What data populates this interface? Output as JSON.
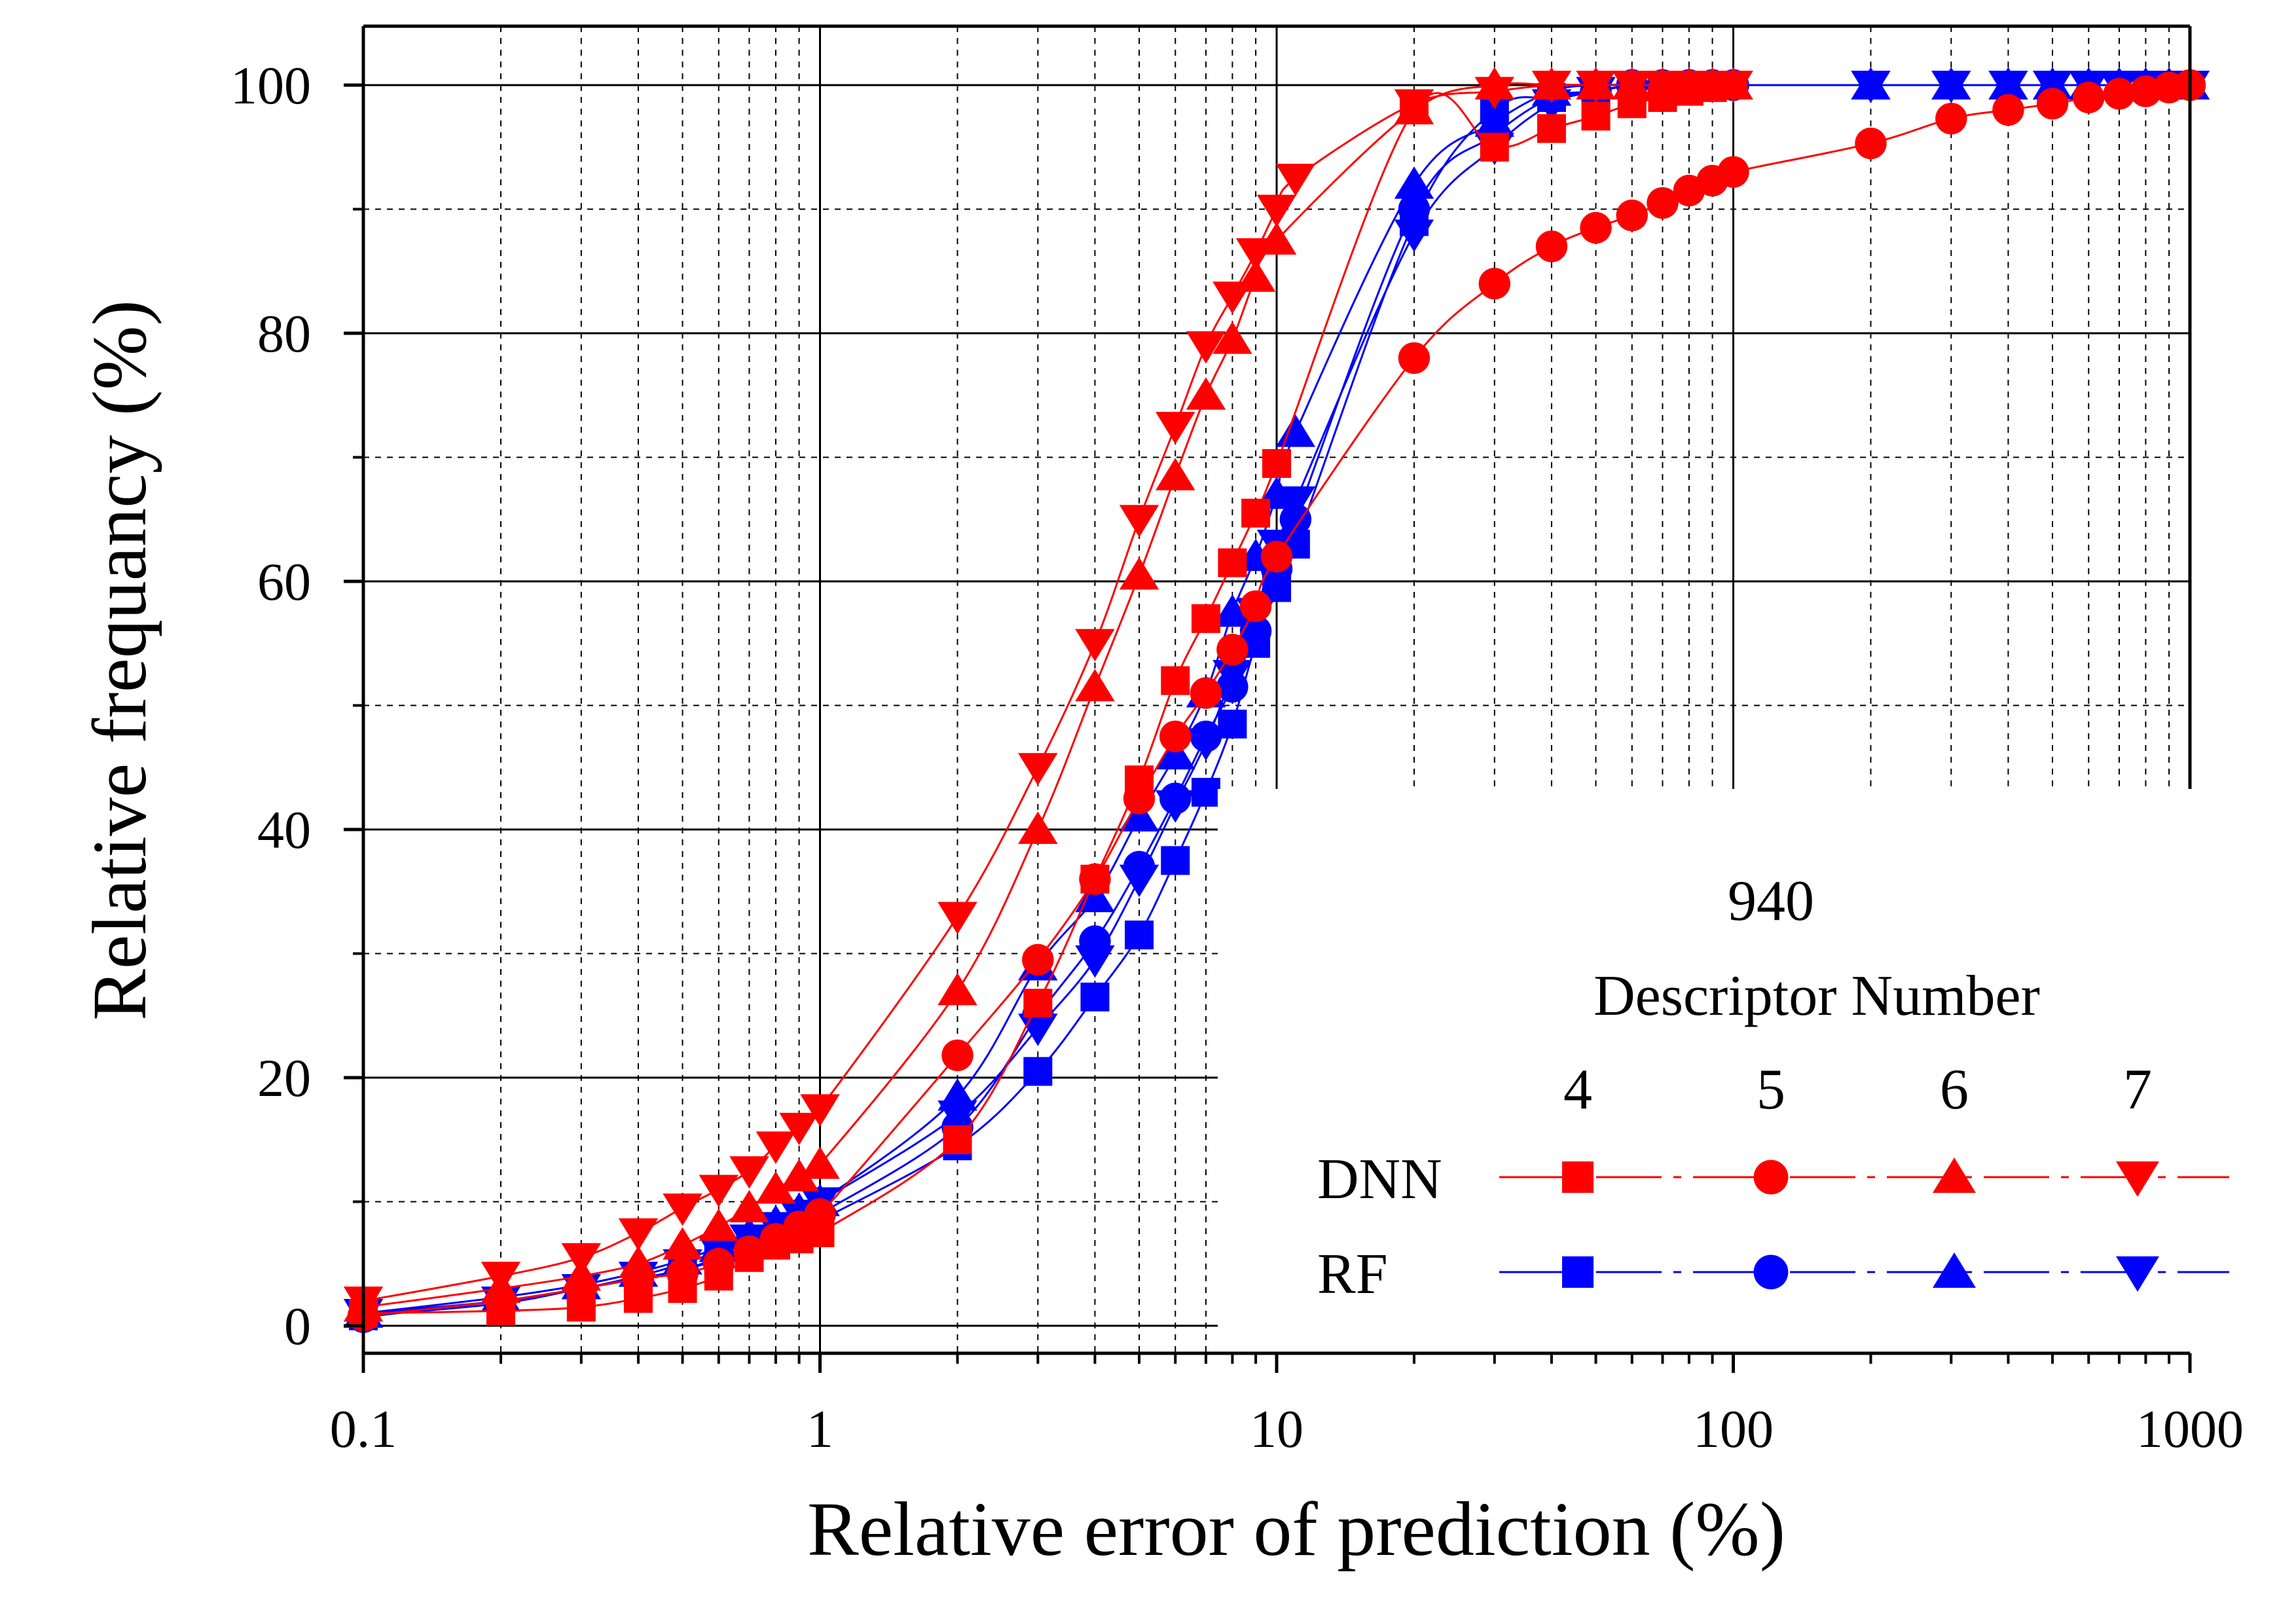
{
  "chart_data": {
    "type": "line",
    "title": "",
    "xlabel": "Relative error of prediction (%)",
    "ylabel": "Relative frequancy (%)",
    "xscale": "log",
    "xlim": [
      0.1,
      1000
    ],
    "ylim": [
      0,
      100
    ],
    "x_ticks": [
      "0.1",
      "1",
      "10",
      "100",
      "1000"
    ],
    "y_ticks": [
      "0",
      "20",
      "40",
      "60",
      "80",
      "100"
    ],
    "grid": true,
    "legend": {
      "placement": "bottom-right",
      "title_line1": "940",
      "title_line2": "Descriptor Number",
      "columns": [
        "4",
        "5",
        "6",
        "7"
      ],
      "rows": [
        "DNN",
        "RF"
      ]
    },
    "series": [
      {
        "name": "DNN-4",
        "model": "DNN",
        "descriptor": "4",
        "color": "#ff0000",
        "marker": "square",
        "x": [
          0.1,
          0.2,
          0.3,
          0.4,
          0.5,
          0.6,
          0.7,
          0.8,
          0.9,
          1,
          2,
          3,
          4,
          5,
          6,
          7,
          8,
          9,
          10,
          20,
          30,
          40,
          50,
          60,
          70,
          80,
          90,
          100
        ],
        "y": [
          1,
          1.2,
          1.5,
          2.2,
          3,
          4,
          5.5,
          6.5,
          7,
          7.5,
          15,
          26,
          36,
          44,
          52,
          57,
          61.5,
          65.5,
          69.5,
          98,
          95,
          96.5,
          97.5,
          98.5,
          99,
          99.5,
          99.8,
          100
        ]
      },
      {
        "name": "DNN-5",
        "model": "DNN",
        "descriptor": "5",
        "color": "#ff0000",
        "marker": "circle",
        "x": [
          0.1,
          0.2,
          0.3,
          0.4,
          0.5,
          0.6,
          0.7,
          0.8,
          0.9,
          1,
          2,
          3,
          4,
          5,
          6,
          7,
          8,
          9,
          10,
          20,
          30,
          40,
          50,
          60,
          70,
          80,
          90,
          100,
          200,
          300,
          400,
          500,
          600,
          700,
          800,
          900,
          1000
        ],
        "y": [
          0.8,
          2,
          3,
          3.8,
          4.2,
          5,
          6,
          7,
          8,
          9,
          21.8,
          29.5,
          36,
          42.5,
          47.5,
          51,
          54.5,
          58,
          62,
          78,
          84,
          87,
          88.5,
          89.5,
          90.5,
          91.5,
          92.3,
          93,
          95.3,
          97.3,
          98,
          98.5,
          99,
          99.3,
          99.5,
          99.8,
          100
        ]
      },
      {
        "name": "DNN-6",
        "model": "DNN",
        "descriptor": "6",
        "color": "#ff0000",
        "marker": "triangle-up",
        "x": [
          0.1,
          0.2,
          0.3,
          0.4,
          0.5,
          0.6,
          0.7,
          0.8,
          0.9,
          1,
          2,
          3,
          4,
          5,
          6,
          7,
          8,
          9,
          10,
          20,
          30,
          40,
          50,
          60,
          70,
          80,
          90,
          100
        ],
        "y": [
          1.5,
          3,
          4,
          5,
          6.5,
          8,
          9.5,
          11,
          12,
          13,
          27,
          40,
          51.5,
          60.5,
          68.5,
          75,
          79.5,
          84.5,
          87.5,
          98,
          100,
          100,
          100,
          100,
          100,
          100,
          100,
          100
        ]
      },
      {
        "name": "DNN-7",
        "model": "DNN",
        "descriptor": "7",
        "color": "#ff0000",
        "marker": "triangle-down",
        "x": [
          0.1,
          0.2,
          0.3,
          0.4,
          0.5,
          0.6,
          0.7,
          0.8,
          0.9,
          1,
          2,
          3,
          4,
          5,
          6,
          7,
          8,
          9,
          10,
          11,
          20,
          30,
          40,
          50,
          60,
          70,
          80,
          90,
          100
        ],
        "y": [
          2,
          4,
          5.5,
          7.5,
          9.5,
          11,
          12.5,
          14.5,
          16,
          17.5,
          33,
          45,
          55,
          65,
          72.5,
          79,
          83,
          86.5,
          90,
          92.5,
          98.5,
          99.5,
          100,
          100,
          100,
          100,
          100,
          100,
          100
        ]
      },
      {
        "name": "RF-4",
        "model": "RF",
        "descriptor": "4",
        "color": "#0000ff",
        "marker": "square",
        "x": [
          0.1,
          0.2,
          0.3,
          0.4,
          0.5,
          0.6,
          0.7,
          0.8,
          0.9,
          1,
          2,
          3,
          4,
          5,
          6,
          7,
          8,
          9,
          10,
          11,
          20,
          30,
          40,
          50,
          60,
          70,
          80,
          90,
          100
        ],
        "y": [
          0.8,
          1.8,
          3,
          3.8,
          4.5,
          5.3,
          6,
          7,
          7.8,
          8.5,
          14.5,
          20.5,
          26.5,
          31.5,
          37.5,
          43,
          48.5,
          55,
          59.5,
          63,
          89,
          98,
          99,
          99.5,
          100,
          100,
          100,
          100,
          100
        ]
      },
      {
        "name": "RF-5",
        "model": "RF",
        "descriptor": "5",
        "color": "#0000ff",
        "marker": "circle",
        "x": [
          0.1,
          0.2,
          0.3,
          0.4,
          0.5,
          0.6,
          0.7,
          0.8,
          0.9,
          1,
          2,
          3,
          4,
          5,
          6,
          7,
          8,
          9,
          10,
          11,
          20,
          30,
          40,
          50,
          60,
          70,
          80,
          90,
          100
        ],
        "y": [
          0.7,
          2,
          3,
          3.8,
          4.5,
          5.5,
          6.5,
          7.3,
          8,
          9,
          16,
          25,
          31,
          37,
          42.5,
          47.5,
          51.5,
          56,
          61,
          65,
          90,
          96,
          99,
          99.5,
          100,
          100,
          100,
          100,
          100
        ]
      },
      {
        "name": "RF-6",
        "model": "RF",
        "descriptor": "6",
        "color": "#0000ff",
        "marker": "triangle-up",
        "x": [
          0.1,
          0.2,
          0.3,
          0.4,
          0.5,
          0.6,
          0.7,
          0.8,
          0.9,
          1,
          2,
          3,
          4,
          5,
          6,
          7,
          8,
          9,
          10,
          11,
          20,
          30,
          40,
          50,
          60,
          70,
          80,
          90,
          100,
          200,
          300,
          400,
          500,
          600,
          700,
          800,
          900,
          1000
        ],
        "y": [
          1,
          2.3,
          3.3,
          4.3,
          5.3,
          6.3,
          7.3,
          8.3,
          9.3,
          10,
          18.5,
          29,
          34.5,
          41,
          46,
          51,
          57.5,
          62,
          67,
          72,
          92,
          97,
          99.5,
          100,
          100,
          100,
          100,
          100,
          100,
          100,
          100,
          100,
          100,
          100,
          100,
          100,
          100,
          100
        ]
      },
      {
        "name": "RF-7",
        "model": "RF",
        "descriptor": "7",
        "color": "#0000ff",
        "marker": "triangle-down",
        "x": [
          0.1,
          0.2,
          0.3,
          0.4,
          0.5,
          0.6,
          0.7,
          0.8,
          0.9,
          1,
          2,
          3,
          4,
          5,
          6,
          7,
          8,
          9,
          10,
          11,
          20,
          30,
          40,
          50,
          60,
          70,
          80,
          90,
          100,
          200,
          300,
          400,
          500,
          600,
          700,
          800,
          900,
          1000
        ],
        "y": [
          1,
          2,
          3,
          4,
          5,
          6,
          7,
          8,
          9,
          10,
          17,
          24,
          29.5,
          36,
          42,
          47,
          52.5,
          57.5,
          63,
          66.5,
          88,
          95,
          98.5,
          99.5,
          100,
          100,
          100,
          100,
          100,
          100,
          100,
          100,
          100,
          100,
          100,
          100,
          100,
          100
        ]
      }
    ]
  }
}
